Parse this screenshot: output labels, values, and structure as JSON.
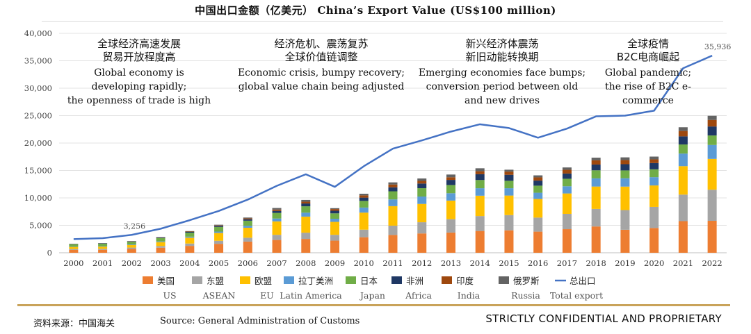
{
  "title": "中国出口金额（亿美元） China’s Export Value (US$100 million)",
  "footer": {
    "source_cn": "资料来源：中国海关",
    "source_en": "Source: General Administration of Customs",
    "confidential": "STRICTLY CONFIDENTIAL AND PROPRIETARY"
  },
  "chart_data": {
    "type": "bar",
    "stacked": true,
    "title": "中国出口金额（亿美元） China’s Export Value (US$100 million)",
    "categories": [
      "2000",
      "2001",
      "2002",
      "2003",
      "2004",
      "2005",
      "2006",
      "2007",
      "2008",
      "2009",
      "2010",
      "2011",
      "2012",
      "2013",
      "2014",
      "2015",
      "2016",
      "2017",
      "2018",
      "2019",
      "2020",
      "2021",
      "2022"
    ],
    "ylim": [
      0,
      40000
    ],
    "yticks": [
      "0",
      "5,000",
      "10,000",
      "15,000",
      "20,000",
      "25,000",
      "30,000",
      "35,000",
      "40,000"
    ],
    "series": [
      {
        "name": "美国",
        "name_en": "US",
        "color": "#ed7d31",
        "values": [
          520,
          540,
          700,
          920,
          1250,
          1630,
          2030,
          2330,
          2520,
          2210,
          2830,
          3240,
          3520,
          3680,
          3970,
          4090,
          3850,
          4300,
          4790,
          4190,
          4520,
          5760,
          5820
        ]
      },
      {
        "name": "东盟",
        "name_en": "ASEAN",
        "color": "#a5a5a5",
        "values": [
          170,
          180,
          240,
          310,
          430,
          550,
          710,
          940,
          1140,
          1060,
          1380,
          1700,
          2040,
          2440,
          2720,
          2780,
          2560,
          2790,
          3200,
          3590,
          3840,
          4840,
          5670
        ]
      },
      {
        "name": "欧盟",
        "name_en": "EU",
        "color": "#ffc000",
        "values": [
          380,
          410,
          480,
          720,
          1070,
          1440,
          1820,
          2450,
          2930,
          2360,
          3110,
          3560,
          3340,
          3390,
          3710,
          3560,
          3390,
          3720,
          4080,
          4280,
          3910,
          5190,
          5620
        ]
      },
      {
        "name": "拉丁美洲",
        "name_en": "Latin America",
        "color": "#5b9bd5",
        "values": [
          70,
          80,
          100,
          120,
          180,
          240,
          360,
          520,
          720,
          570,
          920,
          1220,
          1350,
          1340,
          1360,
          1330,
          1140,
          1310,
          1490,
          1520,
          1510,
          2290,
          2540
        ]
      },
      {
        "name": "日本",
        "name_en": "Japan",
        "color": "#70ad47",
        "values": [
          420,
          450,
          480,
          590,
          730,
          840,
          920,
          1020,
          1160,
          980,
          1210,
          1480,
          1520,
          1500,
          1500,
          1360,
          1290,
          1370,
          1470,
          1430,
          1430,
          1660,
          1730
        ]
      },
      {
        "name": "非洲",
        "name_en": "Africa",
        "color": "#1f3864",
        "values": [
          50,
          60,
          70,
          100,
          140,
          190,
          270,
          370,
          510,
          480,
          600,
          730,
          850,
          930,
          1060,
          1090,
          920,
          950,
          1050,
          1130,
          1140,
          1480,
          1640
        ]
      },
      {
        "name": "印度",
        "name_en": "India",
        "color": "#9e480e",
        "values": [
          20,
          20,
          30,
          40,
          60,
          90,
          150,
          240,
          320,
          300,
          410,
          510,
          480,
          480,
          540,
          580,
          590,
          680,
          770,
          750,
          670,
          980,
          1190
        ]
      },
      {
        "name": "俄罗斯",
        "name_en": "Russia",
        "color": "#636363",
        "values": [
          20,
          30,
          40,
          60,
          90,
          130,
          160,
          290,
          330,
          170,
          300,
          390,
          440,
          500,
          540,
          350,
          370,
          430,
          480,
          500,
          510,
          680,
          760
        ]
      }
    ],
    "line": {
      "name": "总出口",
      "name_en": "Total export",
      "color": "#4472c4",
      "values": [
        2492,
        2661,
        3256,
        4382,
        5934,
        7620,
        9690,
        12201,
        14307,
        12016,
        15778,
        18984,
        20487,
        22090,
        23423,
        22735,
        20976,
        22635,
        24867,
        24995,
        25900,
        33640,
        35936
      ]
    },
    "line_labels": [
      {
        "index": 2,
        "text": "3,256"
      },
      {
        "index": 22,
        "text": "35,936"
      }
    ],
    "annotations": [
      {
        "cn": [
          "全球经济高速发展",
          "贸易开放程度高"
        ],
        "en": [
          "Global economy is",
          "developing rapidly;",
          "the openness of trade is high"
        ]
      },
      {
        "cn": [
          "经济危机、震荡复苏",
          "全球价值链调整"
        ],
        "en": [
          "Economic crisis, bumpy recovery;",
          "global value chain being adjusted"
        ]
      },
      {
        "cn": [
          "新兴经济体震荡",
          "新旧动能转换期"
        ],
        "en": [
          "Emerging economies face bumps;",
          "conversion period between old",
          "and new drives"
        ]
      },
      {
        "cn": [
          "全球疫情",
          "B2C电商崛起"
        ],
        "en": [
          "Global pandemic;",
          "the rise of B2C e-",
          "commerce"
        ]
      }
    ]
  }
}
